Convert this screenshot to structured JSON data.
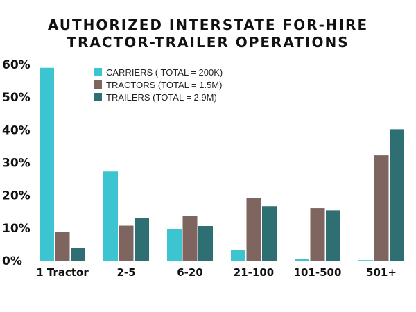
{
  "title_lines": [
    "AUTHORIZED INTERSTATE FOR-HIRE",
    "TRACTOR-TRAILER OPERATIONS"
  ],
  "colors": {
    "carriers": "#3cc5d1",
    "tractors": "#7e6560",
    "trailers": "#2d6f73"
  },
  "chart_data": {
    "type": "bar",
    "title": "AUTHORIZED INTERSTATE FOR-HIRE TRACTOR-TRAILER OPERATIONS",
    "categories": [
      "1 Tractor",
      "2-5",
      "6-20",
      "21-100",
      "101-500",
      "501+"
    ],
    "series": [
      {
        "name": "CARRIERS ( TOTAL = 200K)",
        "values": [
          59,
          27.3,
          9.6,
          3.3,
          0.6,
          0.1
        ]
      },
      {
        "name": "TRACTORS (TOTAL = 1.5M)",
        "values": [
          8.7,
          10.7,
          13.6,
          19.2,
          16.1,
          32.2
        ]
      },
      {
        "name": "TRAILERS (TOTAL = 2.9M)",
        "values": [
          4.0,
          13.1,
          10.6,
          16.7,
          15.4,
          40.2
        ]
      }
    ],
    "ylim": [
      0,
      60
    ],
    "yticks": [
      0,
      10,
      20,
      30,
      40,
      50,
      60
    ],
    "ytick_labels": [
      "0%",
      "10%",
      "20%",
      "30%",
      "40%",
      "50%",
      "60%"
    ],
    "xlabel": "",
    "ylabel": "",
    "grid": false,
    "legend_position": "top-left"
  }
}
